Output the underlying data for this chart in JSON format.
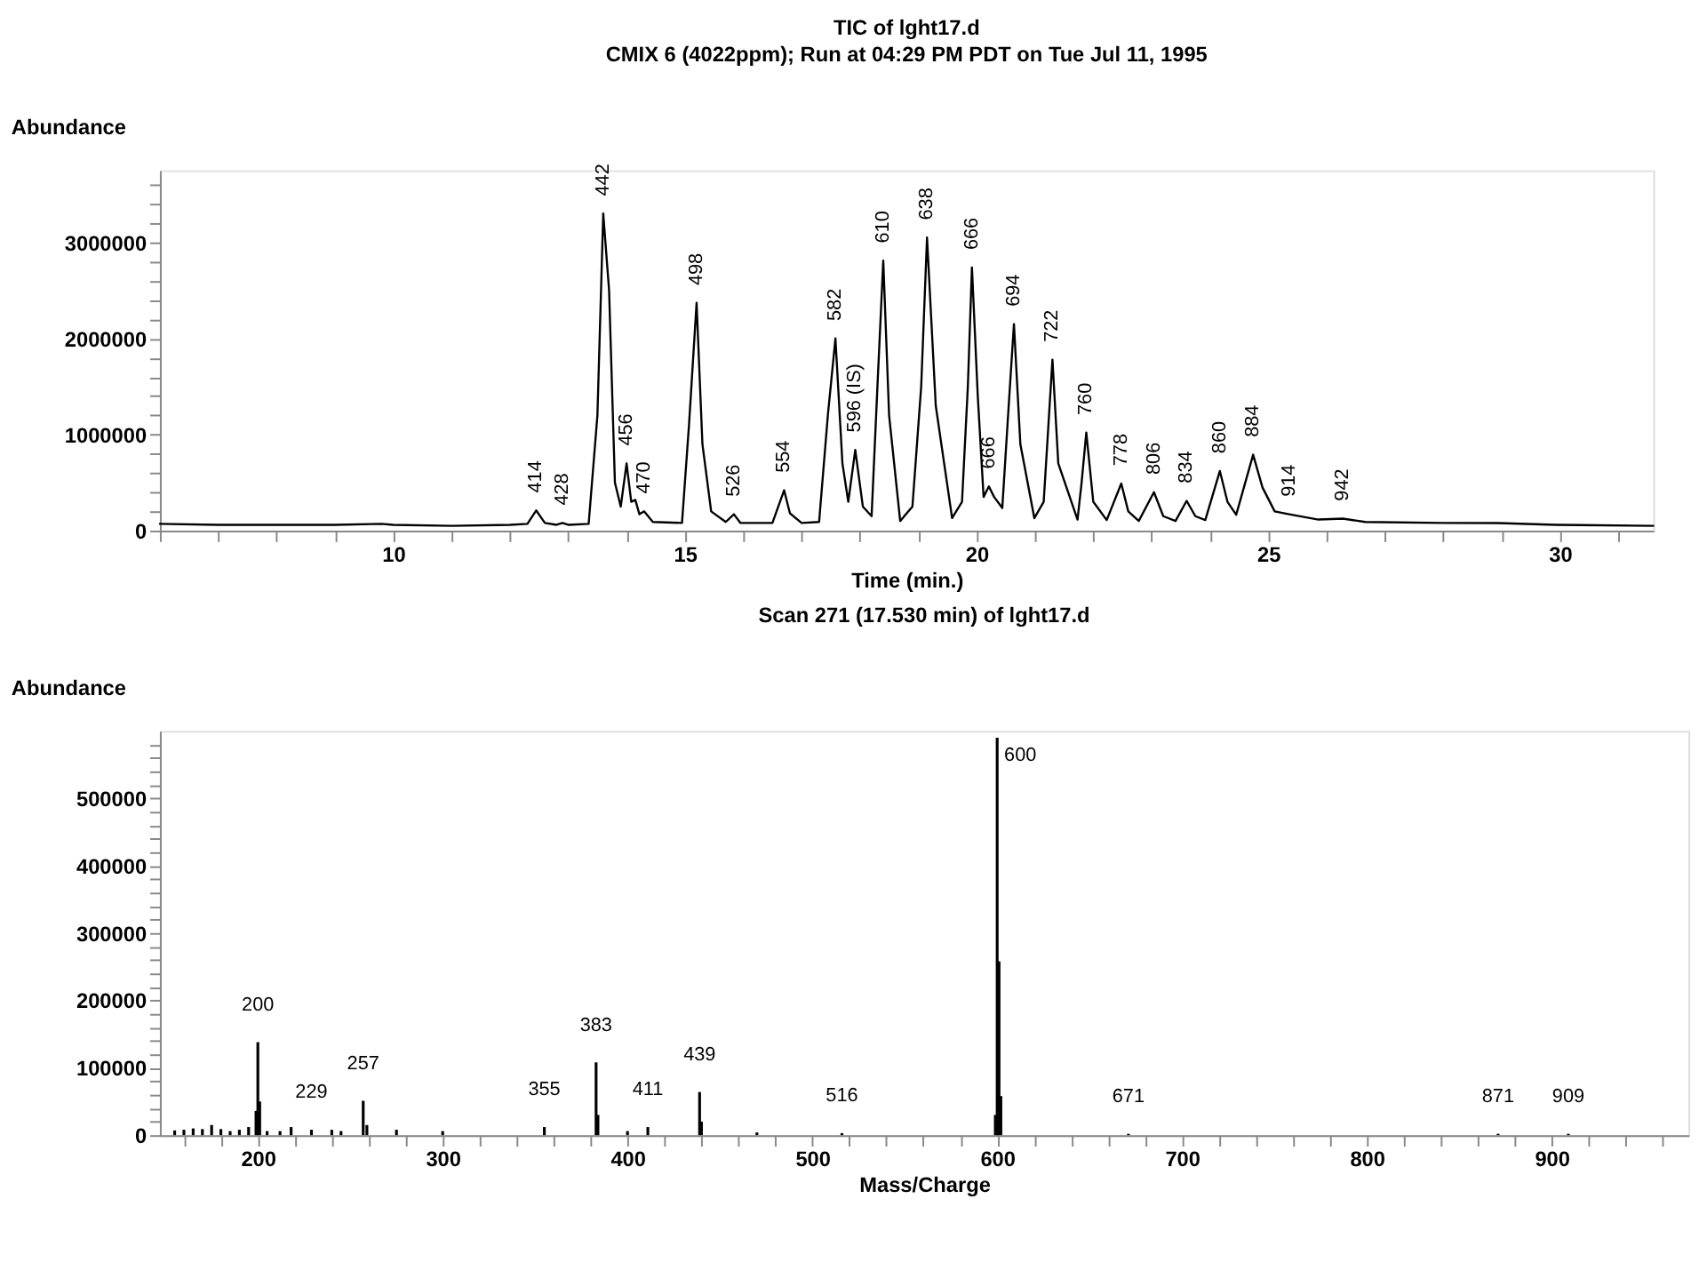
{
  "chart_data": [
    {
      "type": "line",
      "title": "TIC of lght17.d",
      "subtitle": "CMIX 6 (4022ppm); Run at 04:29 PM PDT on Tue Jul 11, 1995",
      "xlabel": "Time (min.)",
      "ylabel": "Abundance",
      "grid": false,
      "marker": "none",
      "line_style": "solid",
      "xlim": [
        6,
        31.6
      ],
      "ylim": [
        0,
        3750000
      ],
      "xticks": [
        {
          "value": 6,
          "label": null
        },
        {
          "value": 7,
          "label": null
        },
        {
          "value": 8,
          "label": null
        },
        {
          "value": 9,
          "label": null
        },
        10,
        {
          "value": 11,
          "label": null
        },
        {
          "value": 12,
          "label": null
        },
        {
          "value": 13,
          "label": null
        },
        {
          "value": 14,
          "label": null
        },
        15,
        {
          "value": 16,
          "label": null
        },
        {
          "value": 17,
          "label": null
        },
        {
          "value": 18,
          "label": null
        },
        {
          "value": 19,
          "label": null
        },
        20,
        {
          "value": 21,
          "label": null
        },
        {
          "value": 22,
          "label": null
        },
        {
          "value": 23,
          "label": null
        },
        {
          "value": 24,
          "label": null
        },
        25,
        {
          "value": 26,
          "label": null
        },
        {
          "value": 27,
          "label": null
        },
        {
          "value": 28,
          "label": null
        },
        {
          "value": 29,
          "label": null
        },
        30,
        {
          "value": 31,
          "label": null
        }
      ],
      "yticks": [
        0,
        {
          "value": 200000,
          "label": null
        },
        {
          "value": 400000,
          "label": null
        },
        {
          "value": 600000,
          "label": null
        },
        {
          "value": 800000,
          "label": null
        },
        1000000,
        {
          "value": 1200000,
          "label": null
        },
        {
          "value": 1400000,
          "label": null
        },
        {
          "value": 1600000,
          "label": null
        },
        {
          "value": 1800000,
          "label": null
        },
        2000000,
        {
          "value": 2200000,
          "label": null
        },
        {
          "value": 2400000,
          "label": null
        },
        {
          "value": 2600000,
          "label": null
        },
        {
          "value": 2800000,
          "label": null
        },
        3000000,
        {
          "value": 3200000,
          "label": null
        },
        {
          "value": 3400000,
          "label": null
        },
        {
          "value": 3600000,
          "label": null
        }
      ],
      "series": [
        {
          "color": "#000000",
          "x": [
            6.0,
            7.0,
            8.0,
            9.0,
            9.8,
            10.0,
            11.0,
            12.0,
            12.3,
            12.45,
            12.6,
            12.8,
            12.9,
            13.0,
            13.35,
            13.5,
            13.6,
            13.7,
            13.8,
            13.9,
            14.0,
            14.08,
            14.15,
            14.22,
            14.3,
            14.45,
            14.95,
            15.07,
            15.2,
            15.3,
            15.45,
            15.7,
            15.84,
            15.95,
            16.5,
            16.7,
            16.8,
            17.0,
            17.3,
            17.45,
            17.58,
            17.7,
            17.8,
            17.92,
            18.05,
            18.2,
            18.3,
            18.4,
            18.5,
            18.69,
            18.9,
            19.05,
            19.15,
            19.3,
            19.58,
            19.75,
            19.85,
            19.92,
            20.02,
            20.12,
            20.21,
            20.3,
            20.44,
            20.55,
            20.64,
            20.75,
            20.99,
            21.15,
            21.3,
            21.4,
            21.73,
            21.8,
            21.88,
            22.0,
            22.23,
            22.48,
            22.6,
            22.78,
            23.04,
            23.2,
            23.41,
            23.6,
            23.75,
            23.92,
            24.17,
            24.3,
            24.45,
            24.74,
            24.9,
            25.11,
            25.36,
            25.86,
            26.28,
            26.66,
            28.0,
            28.94,
            29.94,
            31.6
          ],
          "values": [
            70000,
            60000,
            60000,
            60000,
            70000,
            60000,
            50000,
            60000,
            70000,
            210000,
            80000,
            60000,
            80000,
            60000,
            70000,
            1200000,
            3300000,
            2500000,
            500000,
            250000,
            700000,
            300000,
            320000,
            170000,
            200000,
            90000,
            80000,
            1100000,
            2370000,
            900000,
            200000,
            90000,
            170000,
            80000,
            80000,
            420000,
            180000,
            80000,
            90000,
            1200000,
            2000000,
            700000,
            300000,
            840000,
            250000,
            150000,
            1500000,
            2810000,
            1200000,
            100000,
            250000,
            1500000,
            3050000,
            1300000,
            130000,
            300000,
            1500000,
            2740000,
            1400000,
            350000,
            460000,
            350000,
            235000,
            1300000,
            2150000,
            900000,
            130000,
            300000,
            1780000,
            700000,
            115000,
            500000,
            1020000,
            300000,
            110000,
            490000,
            200000,
            100000,
            400000,
            150000,
            100000,
            310000,
            150000,
            110000,
            620000,
            300000,
            165000,
            790000,
            450000,
            200000,
            170000,
            115000,
            125000,
            90000,
            80000,
            78000,
            60000,
            50000
          ]
        }
      ],
      "annotations": [
        {
          "text": "414",
          "x": 12.45,
          "y": 210000
        },
        {
          "text": "428",
          "x": 12.9,
          "y": 80000
        },
        {
          "text": "442",
          "x": 13.6,
          "y": 3300000
        },
        {
          "text": "456",
          "x": 14.0,
          "y": 700000
        },
        {
          "text": "470",
          "x": 14.3,
          "y": 200000
        },
        {
          "text": "498",
          "x": 15.2,
          "y": 2370000
        },
        {
          "text": "526",
          "x": 15.84,
          "y": 170000
        },
        {
          "text": "554",
          "x": 16.7,
          "y": 420000
        },
        {
          "text": "582",
          "x": 17.58,
          "y": 2000000
        },
        {
          "text": "596 (IS)",
          "x": 17.92,
          "y": 840000
        },
        {
          "text": "610",
          "x": 18.4,
          "y": 2810000
        },
        {
          "text": "638",
          "x": 19.15,
          "y": 3050000
        },
        {
          "text": "666",
          "x": 19.92,
          "y": 2740000
        },
        {
          "text": "666",
          "x": 20.21,
          "y": 460000
        },
        {
          "text": "694",
          "x": 20.64,
          "y": 2150000
        },
        {
          "text": "722",
          "x": 21.3,
          "y": 1780000
        },
        {
          "text": "760",
          "x": 21.88,
          "y": 1020000
        },
        {
          "text": "778",
          "x": 22.48,
          "y": 490000
        },
        {
          "text": "806",
          "x": 23.04,
          "y": 400000
        },
        {
          "text": "834",
          "x": 23.6,
          "y": 310000
        },
        {
          "text": "860",
          "x": 24.17,
          "y": 620000
        },
        {
          "text": "884",
          "x": 24.74,
          "y": 790000
        },
        {
          "text": "914",
          "x": 25.36,
          "y": 170000
        },
        {
          "text": "942",
          "x": 26.28,
          "y": 125000
        }
      ]
    },
    {
      "type": "bar",
      "title": "Scan 271 (17.530 min) of lght17.d",
      "xlabel": "Mass/Charge",
      "ylabel": "Abundance",
      "grid": false,
      "xlim": [
        147,
        974
      ],
      "ylim": [
        0,
        600000
      ],
      "xticks": [
        {
          "value": 160,
          "label": null
        },
        {
          "value": 180,
          "label": null
        },
        200,
        {
          "value": 220,
          "label": null
        },
        {
          "value": 240,
          "label": null
        },
        {
          "value": 260,
          "label": null
        },
        {
          "value": 280,
          "label": null
        },
        300,
        {
          "value": 320,
          "label": null
        },
        {
          "value": 340,
          "label": null
        },
        {
          "value": 360,
          "label": null
        },
        {
          "value": 380,
          "label": null
        },
        400,
        {
          "value": 420,
          "label": null
        },
        {
          "value": 440,
          "label": null
        },
        {
          "value": 460,
          "label": null
        },
        {
          "value": 480,
          "label": null
        },
        500,
        {
          "value": 520,
          "label": null
        },
        {
          "value": 540,
          "label": null
        },
        {
          "value": 560,
          "label": null
        },
        {
          "value": 580,
          "label": null
        },
        600,
        {
          "value": 620,
          "label": null
        },
        {
          "value": 640,
          "label": null
        },
        {
          "value": 660,
          "label": null
        },
        {
          "value": 680,
          "label": null
        },
        700,
        {
          "value": 720,
          "label": null
        },
        {
          "value": 740,
          "label": null
        },
        {
          "value": 760,
          "label": null
        },
        {
          "value": 780,
          "label": null
        },
        800,
        {
          "value": 820,
          "label": null
        },
        {
          "value": 840,
          "label": null
        },
        {
          "value": 860,
          "label": null
        },
        {
          "value": 880,
          "label": null
        },
        900,
        {
          "value": 920,
          "label": null
        },
        {
          "value": 940,
          "label": null
        },
        {
          "value": 960,
          "label": null
        }
      ],
      "yticks": [
        0,
        {
          "value": 20000,
          "label": null
        },
        {
          "value": 40000,
          "label": null
        },
        {
          "value": 60000,
          "label": null
        },
        {
          "value": 80000,
          "label": null
        },
        100000,
        {
          "value": 120000,
          "label": null
        },
        {
          "value": 140000,
          "label": null
        },
        {
          "value": 160000,
          "label": null
        },
        {
          "value": 180000,
          "label": null
        },
        200000,
        {
          "value": 220000,
          "label": null
        },
        {
          "value": 240000,
          "label": null
        },
        {
          "value": 260000,
          "label": null
        },
        {
          "value": 280000,
          "label": null
        },
        300000,
        {
          "value": 320000,
          "label": null
        },
        {
          "value": 340000,
          "label": null
        },
        {
          "value": 360000,
          "label": null
        },
        {
          "value": 380000,
          "label": null
        },
        400000,
        {
          "value": 420000,
          "label": null
        },
        {
          "value": 440000,
          "label": null
        },
        {
          "value": 460000,
          "label": null
        },
        {
          "value": 480000,
          "label": null
        },
        500000,
        {
          "value": 520000,
          "label": null
        },
        {
          "value": 540000,
          "label": null
        },
        {
          "value": 560000,
          "label": null
        },
        {
          "value": 580000,
          "label": null
        }
      ],
      "series": [
        {
          "color": "#000000",
          "x": [
            155,
            160,
            165,
            170,
            175,
            180,
            185,
            190,
            195,
            199,
            200,
            201,
            205,
            212,
            218,
            229,
            240,
            245,
            257,
            259,
            275,
            300,
            355,
            383,
            384,
            400,
            411,
            439,
            440,
            470,
            516,
            599,
            600,
            601,
            602,
            671,
            871,
            909
          ],
          "values": [
            7000,
            8000,
            10000,
            9000,
            15000,
            9000,
            6000,
            8000,
            12000,
            36000,
            138000,
            50000,
            6000,
            6000,
            12000,
            8000,
            8000,
            6000,
            51000,
            15000,
            8000,
            6000,
            12000,
            108000,
            30000,
            6000,
            12000,
            64000,
            20000,
            4000,
            3000,
            30000,
            590000,
            258000,
            58000,
            2000,
            2000,
            2000
          ]
        }
      ],
      "annotations": [
        {
          "text": "200",
          "x": 200,
          "y": 138000
        },
        {
          "text": "229",
          "x": 229,
          "y": 8000
        },
        {
          "text": "257",
          "x": 257,
          "y": 51000
        },
        {
          "text": "355",
          "x": 355,
          "y": 12000
        },
        {
          "text": "383",
          "x": 383,
          "y": 108000
        },
        {
          "text": "411",
          "x": 411,
          "y": 12000
        },
        {
          "text": "439",
          "x": 439,
          "y": 64000
        },
        {
          "text": "516",
          "x": 516,
          "y": 3000
        },
        {
          "text": "600",
          "x": 600,
          "y": 590000
        },
        {
          "text": "671",
          "x": 671,
          "y": 2000
        },
        {
          "text": "871",
          "x": 871,
          "y": 2000
        },
        {
          "text": "909",
          "x": 909,
          "y": 2000
        }
      ]
    }
  ]
}
